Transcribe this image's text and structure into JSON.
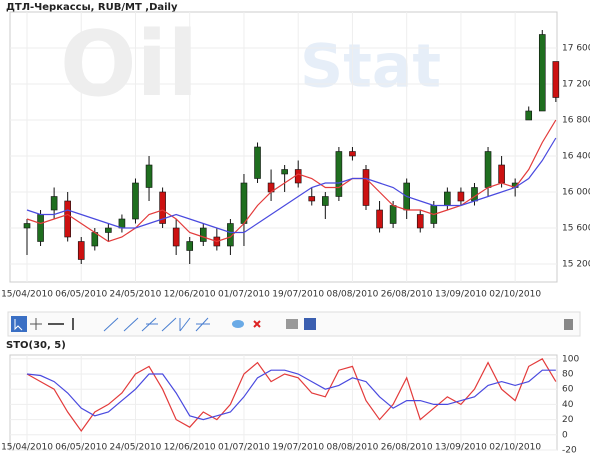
{
  "chart_data": [
    {
      "type": "candlestick",
      "title": "ДТЛ-Черкассы,  RUB/MT ,Daily",
      "watermark": [
        "Oil",
        "Stat"
      ],
      "categories": [
        "15/04/2010",
        null,
        null,
        null,
        "06/05/2010",
        null,
        null,
        null,
        "24/05/2010",
        null,
        null,
        null,
        "12/06/2010",
        null,
        null,
        null,
        "01/07/2010",
        null,
        null,
        null,
        "19/07/2010",
        null,
        null,
        null,
        "08/08/2010",
        null,
        null,
        null,
        "26/08/2010",
        null,
        null,
        null,
        "13/09/2010",
        null,
        null,
        null,
        "02/10/2010",
        null,
        null,
        null
      ],
      "open": [
        15600,
        15450,
        15800,
        15900,
        15450,
        15400,
        15550,
        15600,
        15700,
        16050,
        16000,
        15600,
        15350,
        15450,
        15500,
        15400,
        15650,
        16150,
        16100,
        16200,
        16250,
        15950,
        15850,
        15950,
        16450,
        16250,
        15800,
        15650,
        15800,
        15750,
        15650,
        15850,
        16000,
        15900,
        16050,
        16300,
        16050,
        16800,
        16900,
        17450
      ],
      "high": [
        15700,
        15800,
        16050,
        16000,
        15500,
        15600,
        15650,
        15750,
        16150,
        16400,
        16050,
        15700,
        15500,
        15650,
        15600,
        15700,
        16200,
        16550,
        16250,
        16300,
        16350,
        16050,
        16000,
        16500,
        16500,
        16300,
        15900,
        15900,
        16150,
        15800,
        15900,
        16050,
        16050,
        16100,
        16500,
        16400,
        16150,
        16950,
        17800,
        17450
      ],
      "low": [
        15300,
        15400,
        15700,
        15450,
        15200,
        15350,
        15450,
        15550,
        15650,
        15900,
        15600,
        15300,
        15200,
        15400,
        15350,
        15300,
        15400,
        16100,
        15900,
        16000,
        16050,
        15850,
        15700,
        15900,
        16350,
        15800,
        15550,
        15600,
        15700,
        15550,
        15600,
        15800,
        15850,
        15850,
        15950,
        16050,
        15950,
        16800,
        16900,
        17000
      ],
      "close": [
        15650,
        15750,
        15950,
        15500,
        15250,
        15550,
        15600,
        15700,
        16100,
        16300,
        15650,
        15400,
        15450,
        15600,
        15400,
        15650,
        16100,
        16500,
        16000,
        16250,
        16100,
        15900,
        15950,
        16450,
        16400,
        15850,
        15600,
        15850,
        16100,
        15600,
        15850,
        16000,
        15900,
        16050,
        16450,
        16100,
        16100,
        16900,
        17750,
        17050
      ],
      "up_color": "#1f6e1f",
      "down_color": "#cc1111",
      "lines": [
        {
          "color": "#e33b3b",
          "values": [
            15700,
            15650,
            15700,
            15750,
            15650,
            15550,
            15450,
            15500,
            15600,
            15750,
            15800,
            15700,
            15550,
            15500,
            15450,
            15500,
            15650,
            15850,
            16000,
            16100,
            16200,
            16150,
            16050,
            16050,
            16150,
            16150,
            16000,
            15850,
            15800,
            15800,
            15750,
            15800,
            15850,
            15950,
            16050,
            16100,
            16050,
            16250,
            16550,
            16800
          ]
        },
        {
          "color": "#4a4adf",
          "values": [
            15800,
            15750,
            15750,
            15800,
            15750,
            15700,
            15650,
            15600,
            15600,
            15650,
            15700,
            15750,
            15700,
            15650,
            15600,
            15550,
            15550,
            15650,
            15750,
            15850,
            15950,
            16050,
            16100,
            16100,
            16150,
            16150,
            16100,
            16050,
            15950,
            15900,
            15850,
            15850,
            15850,
            15900,
            15950,
            16000,
            16050,
            16150,
            16350,
            16600
          ]
        }
      ],
      "ylim": [
        15000,
        18000
      ],
      "yticks": [
        {
          "value": 15200,
          "label": "15 200"
        },
        {
          "value": 15600,
          "label": "15 600"
        },
        {
          "value": 16000,
          "label": "16 000"
        },
        {
          "value": 16400,
          "label": "16 400"
        },
        {
          "value": 16800,
          "label": "16 800"
        },
        {
          "value": 17200,
          "label": "17 200"
        },
        {
          "value": 17600,
          "label": "17 600"
        }
      ],
      "grid": true
    },
    {
      "type": "line",
      "title": "STO(30, 5)",
      "categories": [
        "15/04/2010",
        null,
        null,
        null,
        "06/05/2010",
        null,
        null,
        null,
        "24/05/2010",
        null,
        null,
        null,
        "12/06/2010",
        null,
        null,
        null,
        "01/07/2010",
        null,
        null,
        null,
        "19/07/2010",
        null,
        null,
        null,
        "08/08/2010",
        null,
        null,
        null,
        "26/08/2010",
        null,
        null,
        null,
        "13/09/2010",
        null,
        null,
        null,
        "02/10/2010",
        null,
        null,
        null
      ],
      "lines": [
        {
          "color": "#e33b3b",
          "values": [
            80,
            70,
            60,
            30,
            5,
            30,
            40,
            55,
            80,
            90,
            60,
            20,
            10,
            30,
            20,
            40,
            80,
            95,
            70,
            80,
            75,
            55,
            50,
            85,
            90,
            45,
            20,
            40,
            75,
            20,
            35,
            50,
            40,
            60,
            95,
            60,
            45,
            90,
            100,
            70
          ]
        },
        {
          "color": "#4a4adf",
          "values": [
            80,
            78,
            70,
            55,
            35,
            25,
            30,
            45,
            60,
            80,
            80,
            55,
            25,
            20,
            25,
            30,
            50,
            75,
            85,
            85,
            80,
            70,
            60,
            65,
            75,
            70,
            50,
            35,
            45,
            45,
            40,
            40,
            45,
            50,
            65,
            70,
            65,
            70,
            85,
            85
          ]
        }
      ],
      "ylim": [
        -20,
        105
      ],
      "yticks": [
        -20,
        0,
        20,
        40,
        60,
        80,
        100
      ],
      "grid": true
    }
  ]
}
